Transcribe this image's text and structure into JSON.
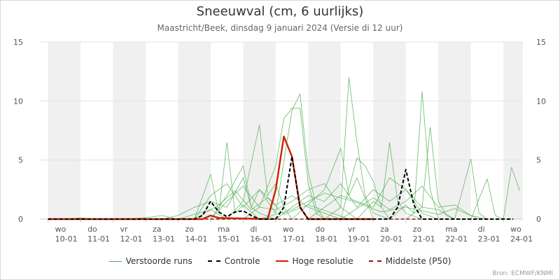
{
  "title": "Sneeuwval (cm, 6 uurlijks)",
  "subtitle": "Maastricht/Beek, dinsdag 9 januari 2024 (Versie di 12 uur)",
  "source": "Bron: ECMWF/KNMI",
  "colors": {
    "ensemble": "#4caf50",
    "control": "#000000",
    "hires": "#cc2200",
    "median": "#8b1a1a",
    "band": "#f0f0f0",
    "grid": "#e3e3e3"
  },
  "legend": {
    "ensemble": "Verstoorde runs",
    "control": "Controle",
    "hires": "Hoge resolutie",
    "median": "Middelste (P50)"
  },
  "chart_data": {
    "type": "line",
    "title": "Sneeuwval (cm, 6 uurlijks)",
    "ylim": [
      0,
      15
    ],
    "yticks": [
      0,
      5,
      10,
      15
    ],
    "x_unit": "day offset from wo 10-01 00:00",
    "xlim": [
      -0.25,
      14.6
    ],
    "day_labels": [
      {
        "day": "wo",
        "date": "10-01"
      },
      {
        "day": "do",
        "date": "11-01"
      },
      {
        "day": "vr",
        "date": "12-01"
      },
      {
        "day": "za",
        "date": "13-01"
      },
      {
        "day": "zo",
        "date": "14-01"
      },
      {
        "day": "ma",
        "date": "15-01"
      },
      {
        "day": "di",
        "date": "16-01"
      },
      {
        "day": "wo",
        "date": "17-01"
      },
      {
        "day": "do",
        "date": "18-01"
      },
      {
        "day": "vr",
        "date": "19-01"
      },
      {
        "day": "za",
        "date": "20-01"
      },
      {
        "day": "zo",
        "date": "21-01"
      },
      {
        "day": "ma",
        "date": "22-01"
      },
      {
        "day": "di",
        "date": "23-01"
      },
      {
        "day": "wo",
        "date": "24-01"
      }
    ],
    "series": [
      {
        "name": "Controle",
        "style": "dashed",
        "points": [
          [
            0,
            0
          ],
          [
            4.5,
            0
          ],
          [
            4.75,
            0.3
          ],
          [
            5.0,
            1.5
          ],
          [
            5.25,
            0.6
          ],
          [
            5.5,
            0.2
          ],
          [
            5.75,
            0.6
          ],
          [
            6.0,
            0.7
          ],
          [
            6.25,
            0.3
          ],
          [
            6.5,
            0
          ],
          [
            7.0,
            0
          ],
          [
            7.25,
            1.0
          ],
          [
            7.5,
            5.3
          ],
          [
            7.75,
            1.0
          ],
          [
            8.0,
            0
          ],
          [
            10.5,
            0
          ],
          [
            10.75,
            1.0
          ],
          [
            11.0,
            4.2
          ],
          [
            11.25,
            1.2
          ],
          [
            11.5,
            0
          ],
          [
            14.3,
            0
          ]
        ]
      },
      {
        "name": "Hoge resolutie",
        "style": "solid",
        "points": [
          [
            0,
            0
          ],
          [
            4.75,
            0
          ],
          [
            5.0,
            0.3
          ],
          [
            5.25,
            0.1
          ],
          [
            6.75,
            0
          ],
          [
            7.0,
            2.5
          ],
          [
            7.25,
            7.0
          ],
          [
            7.5,
            5.3
          ],
          [
            7.75,
            1.0
          ],
          [
            8.0,
            0
          ],
          [
            10.0,
            0
          ]
        ]
      },
      {
        "name": "Middelste (P50)",
        "style": "dashed",
        "points": [
          [
            0,
            0
          ],
          [
            14.3,
            0
          ]
        ]
      }
    ],
    "ensemble_runs": [
      [
        [
          4.5,
          0
        ],
        [
          5.0,
          3.8
        ],
        [
          5.25,
          0.5
        ],
        [
          5.5,
          6.5
        ],
        [
          5.75,
          0.5
        ],
        [
          6.0,
          1.2
        ],
        [
          6.5,
          0
        ]
      ],
      [
        [
          5.0,
          0
        ],
        [
          5.5,
          2.0
        ],
        [
          6.0,
          4.5
        ],
        [
          6.25,
          1.0
        ],
        [
          6.5,
          2.5
        ],
        [
          7.0,
          0.5
        ],
        [
          7.5,
          9.2
        ],
        [
          7.75,
          10.6
        ],
        [
          8.0,
          4.0
        ],
        [
          8.25,
          1.0
        ],
        [
          8.5,
          0
        ]
      ],
      [
        [
          5.5,
          0
        ],
        [
          6.0,
          1.5
        ],
        [
          6.5,
          8.0
        ],
        [
          6.75,
          2.0
        ],
        [
          7.0,
          3.0
        ],
        [
          7.25,
          1.0
        ],
        [
          7.5,
          0
        ]
      ],
      [
        [
          6.0,
          0
        ],
        [
          6.5,
          1.0
        ],
        [
          7.0,
          4.5
        ],
        [
          7.25,
          8.5
        ],
        [
          7.5,
          9.4
        ],
        [
          7.75,
          9.4
        ],
        [
          8.0,
          3.0
        ],
        [
          8.25,
          0.5
        ],
        [
          8.5,
          0
        ]
      ],
      [
        [
          7.5,
          0
        ],
        [
          8.5,
          2.5
        ],
        [
          9.0,
          6.0
        ],
        [
          9.25,
          2.0
        ],
        [
          9.5,
          3.5
        ],
        [
          10.0,
          0
        ]
      ],
      [
        [
          8.5,
          0
        ],
        [
          9.0,
          1.0
        ],
        [
          9.25,
          12.0
        ],
        [
          9.5,
          6.5
        ],
        [
          9.75,
          2.0
        ],
        [
          10.0,
          0.5
        ],
        [
          10.5,
          0
        ]
      ],
      [
        [
          9.0,
          0
        ],
        [
          9.5,
          5.2
        ],
        [
          9.75,
          4.5
        ],
        [
          10.0,
          3.2
        ],
        [
          10.25,
          1.0
        ],
        [
          10.5,
          0
        ]
      ],
      [
        [
          9.5,
          0
        ],
        [
          10.0,
          1.5
        ],
        [
          10.25,
          1.0
        ],
        [
          10.5,
          6.5
        ],
        [
          10.75,
          1.5
        ],
        [
          11.0,
          0.5
        ],
        [
          11.5,
          0
        ]
      ],
      [
        [
          10.5,
          0
        ],
        [
          11.0,
          1.2
        ],
        [
          11.25,
          0.5
        ],
        [
          11.5,
          10.8
        ],
        [
          11.75,
          2.5
        ],
        [
          12.0,
          0
        ]
      ],
      [
        [
          11.0,
          0
        ],
        [
          11.5,
          1.0
        ],
        [
          11.75,
          7.8
        ],
        [
          12.0,
          1.5
        ],
        [
          12.25,
          0.3
        ],
        [
          12.5,
          0
        ]
      ],
      [
        [
          12.5,
          0
        ],
        [
          13.0,
          5.1
        ],
        [
          13.25,
          0.5
        ],
        [
          13.5,
          0
        ]
      ],
      [
        [
          13.0,
          0
        ],
        [
          13.5,
          3.4
        ],
        [
          13.75,
          0.3
        ],
        [
          14.0,
          0
        ],
        [
          14.25,
          4.4
        ],
        [
          14.5,
          2.4
        ]
      ],
      [
        [
          4.5,
          0
        ],
        [
          5.0,
          2.0
        ],
        [
          5.5,
          3.0
        ],
        [
          6.0,
          1.0
        ],
        [
          6.5,
          2.5
        ],
        [
          7.0,
          1.2
        ],
        [
          7.5,
          2.0
        ],
        [
          8.0,
          1.0
        ],
        [
          8.5,
          0.5
        ],
        [
          9.0,
          0
        ]
      ],
      [
        [
          5.0,
          0
        ],
        [
          5.5,
          1.5
        ],
        [
          6.0,
          2.8
        ],
        [
          6.5,
          1.0
        ],
        [
          7.0,
          0.8
        ],
        [
          7.5,
          1.5
        ],
        [
          8.0,
          2.5
        ],
        [
          8.5,
          3.0
        ],
        [
          9.0,
          1.0
        ],
        [
          9.5,
          0
        ]
      ],
      [
        [
          7.0,
          0
        ],
        [
          7.5,
          1.0
        ],
        [
          8.0,
          2.0
        ],
        [
          8.5,
          1.5
        ],
        [
          9.0,
          3.0
        ],
        [
          9.5,
          1.0
        ],
        [
          10.0,
          2.5
        ],
        [
          10.5,
          1.5
        ],
        [
          11.0,
          2.5
        ],
        [
          11.5,
          0.5
        ],
        [
          12.0,
          0
        ]
      ],
      [
        [
          8.0,
          0
        ],
        [
          9.0,
          2.0
        ],
        [
          9.5,
          1.5
        ],
        [
          10.0,
          1.0
        ],
        [
          10.5,
          3.5
        ],
        [
          11.0,
          2.5
        ],
        [
          11.5,
          1.0
        ],
        [
          12.0,
          0.8
        ],
        [
          12.5,
          0
        ]
      ],
      [
        [
          3.5,
          0
        ],
        [
          4.0,
          0.3
        ],
        [
          4.5,
          1.0
        ],
        [
          5.0,
          1.5
        ],
        [
          5.5,
          1.0
        ],
        [
          6.0,
          3.5
        ],
        [
          6.25,
          1.0
        ],
        [
          6.5,
          0.5
        ],
        [
          7.0,
          0
        ]
      ],
      [
        [
          9.0,
          0
        ],
        [
          10.0,
          1.8
        ],
        [
          10.5,
          0.8
        ],
        [
          11.0,
          1.5
        ],
        [
          11.5,
          2.8
        ],
        [
          12.0,
          1.0
        ],
        [
          12.5,
          1.2
        ],
        [
          13.0,
          0.3
        ],
        [
          13.5,
          0
        ]
      ],
      [
        [
          4.5,
          0
        ],
        [
          5.25,
          1.2
        ],
        [
          5.75,
          2.4
        ],
        [
          6.25,
          0.8
        ],
        [
          6.75,
          1.8
        ],
        [
          7.25,
          0.4
        ],
        [
          8.0,
          1.2
        ],
        [
          8.75,
          0.5
        ],
        [
          9.25,
          0
        ]
      ],
      [
        [
          6.5,
          0
        ],
        [
          7.5,
          0.8
        ],
        [
          8.5,
          2.2
        ],
        [
          9.5,
          1.4
        ],
        [
          10.25,
          0.6
        ],
        [
          11.0,
          1.0
        ],
        [
          12.0,
          0.4
        ],
        [
          12.5,
          0.9
        ],
        [
          13.25,
          0
        ]
      ],
      [
        [
          2.5,
          0
        ],
        [
          3.25,
          0.2
        ],
        [
          3.5,
          0.3
        ],
        [
          4.0,
          0
        ],
        [
          4.5,
          0.4
        ],
        [
          5.0,
          0.8
        ],
        [
          5.5,
          0
        ]
      ],
      [
        [
          0.5,
          0
        ],
        [
          1.0,
          0.1
        ],
        [
          1.5,
          0
        ],
        [
          2.5,
          0.05
        ],
        [
          3.0,
          0
        ]
      ]
    ]
  }
}
